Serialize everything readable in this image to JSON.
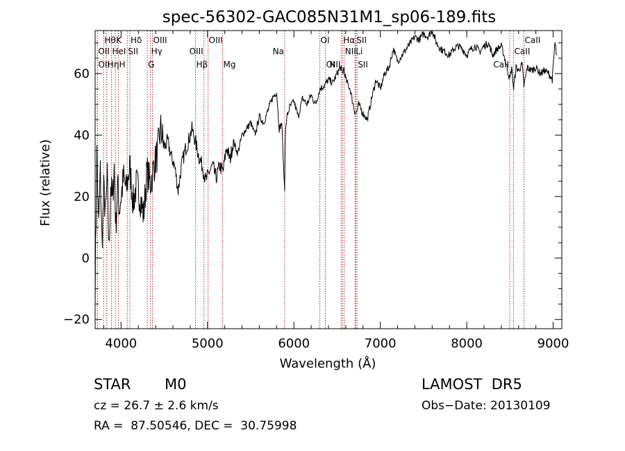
{
  "chart_data": {
    "type": "line",
    "title": "spec-56302-GAC085N31M1_sp06-189.fits",
    "xlabel": "Wavelength (Å)",
    "ylabel": "Flux (relative)",
    "xlim": [
      3700,
      9100
    ],
    "ylim": [
      -23,
      74
    ],
    "x_ticks": [
      4000,
      5000,
      6000,
      7000,
      8000,
      9000
    ],
    "x_tick_labels": [
      "4000",
      "5000",
      "6000",
      "7000",
      "8000",
      "9000"
    ],
    "y_ticks": [
      -20,
      0,
      20,
      40,
      60
    ],
    "y_tick_labels": [
      "−20",
      "0",
      "20",
      "40",
      "60"
    ],
    "grid": false,
    "spectrum": {
      "x": [
        3700,
        3720,
        3740,
        3760,
        3780,
        3800,
        3820,
        3840,
        3860,
        3880,
        3900,
        3920,
        3940,
        3960,
        3980,
        4000,
        4030,
        4060,
        4100,
        4140,
        4180,
        4220,
        4260,
        4300,
        4340,
        4380,
        4420,
        4460,
        4500,
        4540,
        4580,
        4620,
        4660,
        4700,
        4740,
        4780,
        4820,
        4860,
        4900,
        4940,
        4980,
        5020,
        5060,
        5100,
        5140,
        5180,
        5220,
        5260,
        5300,
        5350,
        5400,
        5450,
        5500,
        5550,
        5600,
        5650,
        5700,
        5750,
        5800,
        5830,
        5860,
        5880,
        5893,
        5900,
        5920,
        5950,
        6000,
        6050,
        6100,
        6150,
        6200,
        6250,
        6300,
        6350,
        6400,
        6450,
        6500,
        6540,
        6563,
        6580,
        6600,
        6650,
        6700,
        6720,
        6750,
        6800,
        6850,
        6900,
        6950,
        7000,
        7050,
        7100,
        7150,
        7200,
        7250,
        7300,
        7350,
        7400,
        7450,
        7500,
        7550,
        7600,
        7650,
        7700,
        7750,
        7800,
        7850,
        7900,
        7950,
        8000,
        8050,
        8100,
        8150,
        8200,
        8250,
        8300,
        8350,
        8400,
        8450,
        8498,
        8520,
        8542,
        8570,
        8600,
        8640,
        8662,
        8700,
        8750,
        8800,
        8850,
        8900,
        8950,
        8990,
        9000,
        9020,
        9040
      ],
      "y": [
        -10,
        34,
        10,
        28,
        4,
        22,
        14,
        26,
        2,
        24,
        18,
        30,
        10,
        24,
        16,
        20,
        26,
        22,
        30,
        18,
        24,
        20,
        14,
        28,
        24,
        30,
        34,
        42,
        36,
        38,
        33,
        30,
        22,
        30,
        35,
        38,
        42,
        38,
        33,
        30,
        25,
        28,
        30,
        26,
        30,
        28,
        36,
        32,
        38,
        34,
        40,
        42,
        44,
        40,
        46,
        44,
        48,
        52,
        54,
        42,
        44,
        30,
        22,
        40,
        46,
        49,
        51,
        46,
        52,
        50,
        53,
        50,
        55,
        56,
        58,
        57,
        60,
        62,
        60,
        62,
        58,
        55,
        48,
        47,
        50,
        47,
        45,
        52,
        58,
        55,
        60,
        62,
        68,
        64,
        66,
        68,
        70,
        72,
        71,
        73,
        72,
        74,
        70,
        68,
        67,
        66,
        68,
        69,
        68,
        66,
        68,
        69,
        67,
        69,
        70,
        66,
        68,
        69,
        64,
        58,
        62,
        55,
        62,
        61,
        63,
        56,
        62,
        61,
        62,
        60,
        61,
        60,
        58,
        62,
        70,
        66
      ]
    },
    "spectral_lines": [
      {
        "name": "Hθ",
        "x": 3798,
        "row": 1,
        "align": "right"
      },
      {
        "name": "OII",
        "x": 3727,
        "row": 2,
        "align": "right"
      },
      {
        "name": "OII",
        "x": 3727,
        "row": 3,
        "align": "right"
      },
      {
        "name": "K",
        "x": 3934,
        "row": 1,
        "align": "right"
      },
      {
        "name": "HeI",
        "x": 3889,
        "row": 2,
        "align": "right"
      },
      {
        "name": "Hη",
        "x": 3835,
        "row": 3,
        "align": "right"
      },
      {
        "name": "H",
        "x": 3969,
        "row": 3,
        "align": "right"
      },
      {
        "name": "Hδ",
        "x": 4102,
        "row": 1,
        "align": "right"
      },
      {
        "name": "SII",
        "x": 4072,
        "row": 2,
        "align": "right"
      },
      {
        "name": "OIII",
        "x": 4363,
        "row": 1,
        "align": "right"
      },
      {
        "name": "Hγ",
        "x": 4340,
        "row": 2,
        "align": "right"
      },
      {
        "name": "G",
        "x": 4304,
        "row": 3,
        "align": "right"
      },
      {
        "name": "Hβ",
        "x": 4861,
        "row": 3,
        "align": "right"
      },
      {
        "name": "OIII",
        "x": 5007,
        "row": 1,
        "align": "right"
      },
      {
        "name": "OIII",
        "x": 4959,
        "row": 2,
        "align": "left"
      },
      {
        "name": "Mg",
        "x": 5175,
        "row": 3,
        "align": "right"
      },
      {
        "name": "Na",
        "x": 5893,
        "row": 2,
        "align": "left"
      },
      {
        "name": "OI",
        "x": 6300,
        "row": 1,
        "align": "right"
      },
      {
        "name": "OI",
        "x": 6364,
        "row": 3,
        "align": "right"
      },
      {
        "name": "Hα",
        "x": 6563,
        "row": 1,
        "align": "right"
      },
      {
        "name": "NII",
        "x": 6583,
        "row": 2,
        "align": "right"
      },
      {
        "name": "NII",
        "x": 6548,
        "row": 3,
        "align": "left"
      },
      {
        "name": "SII",
        "x": 6716,
        "row": 1,
        "align": "right"
      },
      {
        "name": "Li",
        "x": 6708,
        "row": 2,
        "align": "right"
      },
      {
        "name": "SII",
        "x": 6731,
        "row": 3,
        "align": "right"
      },
      {
        "name": "CaII",
        "x": 8662,
        "row": 1,
        "align": "right"
      },
      {
        "name": "CaII",
        "x": 8542,
        "row": 2,
        "align": "right"
      },
      {
        "name": "CaII",
        "x": 8498,
        "row": 3,
        "align": "left"
      }
    ],
    "colors": {
      "spectrum": "#000000",
      "lines": "#b22222",
      "axes": "#000000"
    }
  },
  "info": {
    "class": "STAR",
    "subclass": "M0",
    "survey": "LAMOST  DR5",
    "cz": "cz = 26.7 ± 2.6 km/s",
    "obs_date": "Obs−Date: 20130109",
    "coords": "RA =  87.50546, DEC =  30.75998"
  }
}
